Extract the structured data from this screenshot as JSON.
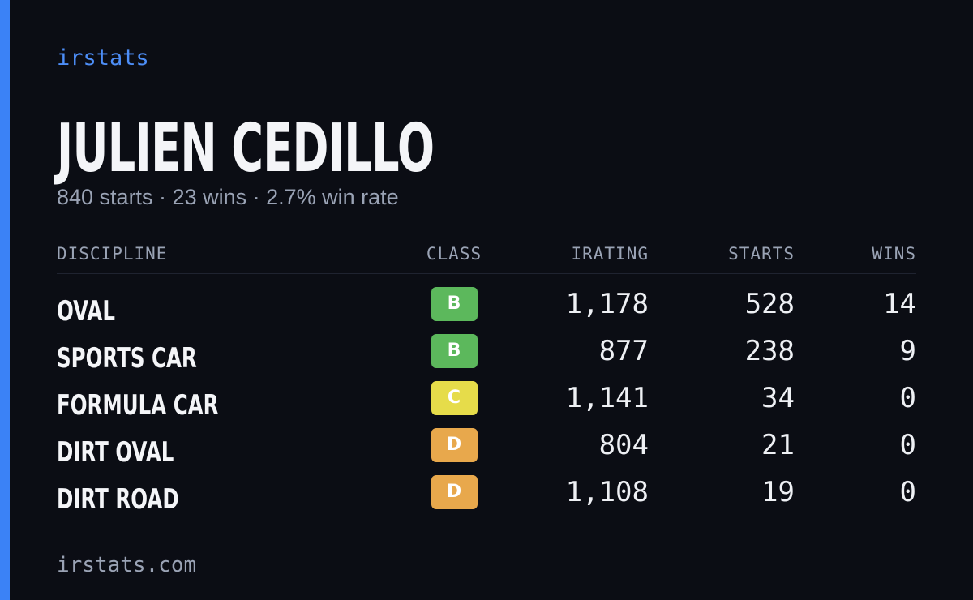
{
  "brand": "irstats",
  "driver": {
    "name": "JULIEN CEDILLO",
    "summary": "840 starts · 23 wins · 2.7% win rate"
  },
  "table": {
    "headers": [
      "DISCIPLINE",
      "CLASS",
      "IRATING",
      "STARTS",
      "WINS"
    ],
    "rows": [
      {
        "discipline": "OVAL",
        "class": "B",
        "class_color": "#5cb85c",
        "irating": "1,178",
        "starts": "528",
        "wins": "14"
      },
      {
        "discipline": "SPORTS CAR",
        "class": "B",
        "class_color": "#5cb85c",
        "irating": "877",
        "starts": "238",
        "wins": "9"
      },
      {
        "discipline": "FORMULA CAR",
        "class": "C",
        "class_color": "#e6dc4a",
        "irating": "1,141",
        "starts": "34",
        "wins": "0"
      },
      {
        "discipline": "DIRT OVAL",
        "class": "D",
        "class_color": "#e8a84c",
        "irating": "804",
        "starts": "21",
        "wins": "0"
      },
      {
        "discipline": "DIRT ROAD",
        "class": "D",
        "class_color": "#e8a84c",
        "irating": "1,108",
        "starts": "19",
        "wins": "0"
      }
    ]
  },
  "footer": "irstats.com"
}
